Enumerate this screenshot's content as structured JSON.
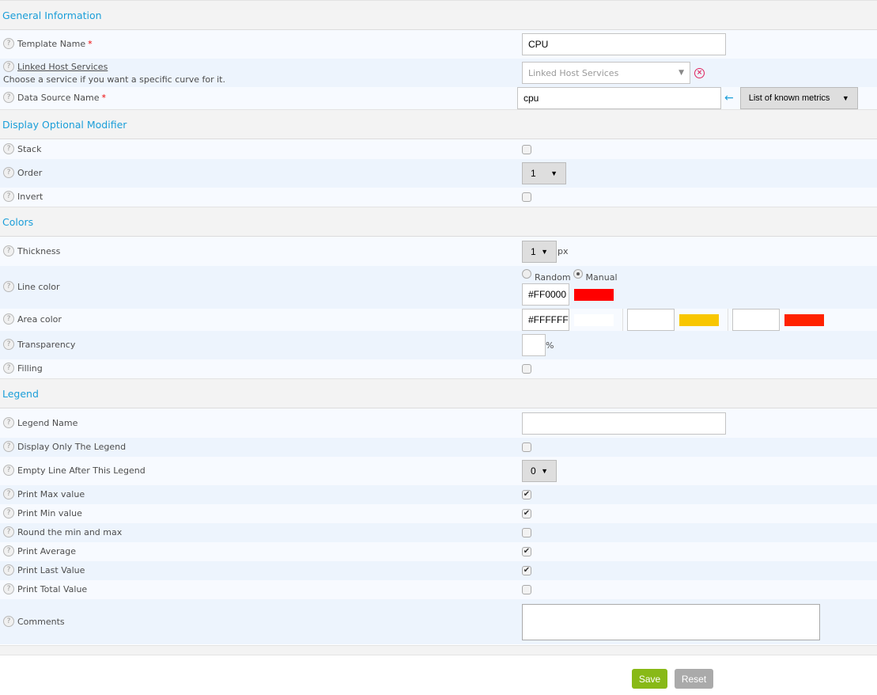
{
  "sections": [
    {
      "title": "General Information",
      "rows": [
        {
          "label": "Template Name",
          "required": true,
          "control": {
            "type": "text",
            "value": "CPU"
          }
        },
        {
          "label": "Linked Host Services",
          "underline": true,
          "sublabel": "Choose a service if you want a specific curve for it.",
          "control": {
            "type": "linked",
            "placeholder": "Linked Host Services",
            "clear_icon": "circle-x-icon"
          }
        },
        {
          "label": "Data Source Name",
          "required": true,
          "control": {
            "type": "datasource",
            "value": "cpu",
            "arrow_icon": "arrow-left-icon",
            "select": "List of known metrics"
          }
        }
      ]
    },
    {
      "title": "Display Optional Modifier",
      "rows": [
        {
          "label": "Stack",
          "control": {
            "type": "checkbox",
            "checked": false
          }
        },
        {
          "label": "Order",
          "control": {
            "type": "select",
            "value": "1"
          }
        },
        {
          "label": "Invert",
          "control": {
            "type": "checkbox",
            "checked": false
          }
        }
      ]
    },
    {
      "title": "Colors",
      "rows": [
        {
          "label": "Thickness",
          "control": {
            "type": "select",
            "value": "1",
            "unit": "px"
          }
        },
        {
          "label": "Line color",
          "control": {
            "type": "linecolor",
            "options": [
              "Random",
              "Manual"
            ],
            "selected": "Manual",
            "value": "#FF0000",
            "swatch": "#FF0000"
          }
        },
        {
          "label": "Area color",
          "control": {
            "type": "areacolor",
            "items": [
              {
                "value": "#FFFFFF",
                "swatch": "#FFFFFF"
              },
              {
                "value": "",
                "swatch": "#F8C600"
              },
              {
                "value": "",
                "swatch": "#FF2200"
              }
            ]
          }
        },
        {
          "label": "Transparency",
          "control": {
            "type": "percent",
            "value": "",
            "unit": "%"
          }
        },
        {
          "label": "Filling",
          "control": {
            "type": "checkbox",
            "checked": false
          }
        }
      ]
    },
    {
      "title": "Legend",
      "rows": [
        {
          "label": "Legend Name",
          "control": {
            "type": "text",
            "value": ""
          }
        },
        {
          "label": "Display Only The Legend",
          "control": {
            "type": "checkbox",
            "checked": false
          }
        },
        {
          "label": "Empty Line After This Legend",
          "control": {
            "type": "select",
            "value": "0"
          }
        },
        {
          "label": "Print Max value",
          "control": {
            "type": "checkbox",
            "checked": true
          }
        },
        {
          "label": "Print Min value",
          "control": {
            "type": "checkbox",
            "checked": true
          }
        },
        {
          "label": "Round the min and max",
          "control": {
            "type": "checkbox",
            "checked": false
          }
        },
        {
          "label": "Print Average",
          "control": {
            "type": "checkbox",
            "checked": true
          }
        },
        {
          "label": "Print Last Value",
          "control": {
            "type": "checkbox",
            "checked": true
          }
        },
        {
          "label": "Print Total Value",
          "control": {
            "type": "checkbox",
            "checked": false
          }
        },
        {
          "label": "Comments",
          "control": {
            "type": "textarea",
            "value": ""
          }
        }
      ]
    }
  ],
  "buttons": {
    "save": "Save",
    "reset": "Reset"
  },
  "colors": {
    "accent": "#1A9ED9",
    "save": "#88B917",
    "reset": "#AAAAAA"
  }
}
